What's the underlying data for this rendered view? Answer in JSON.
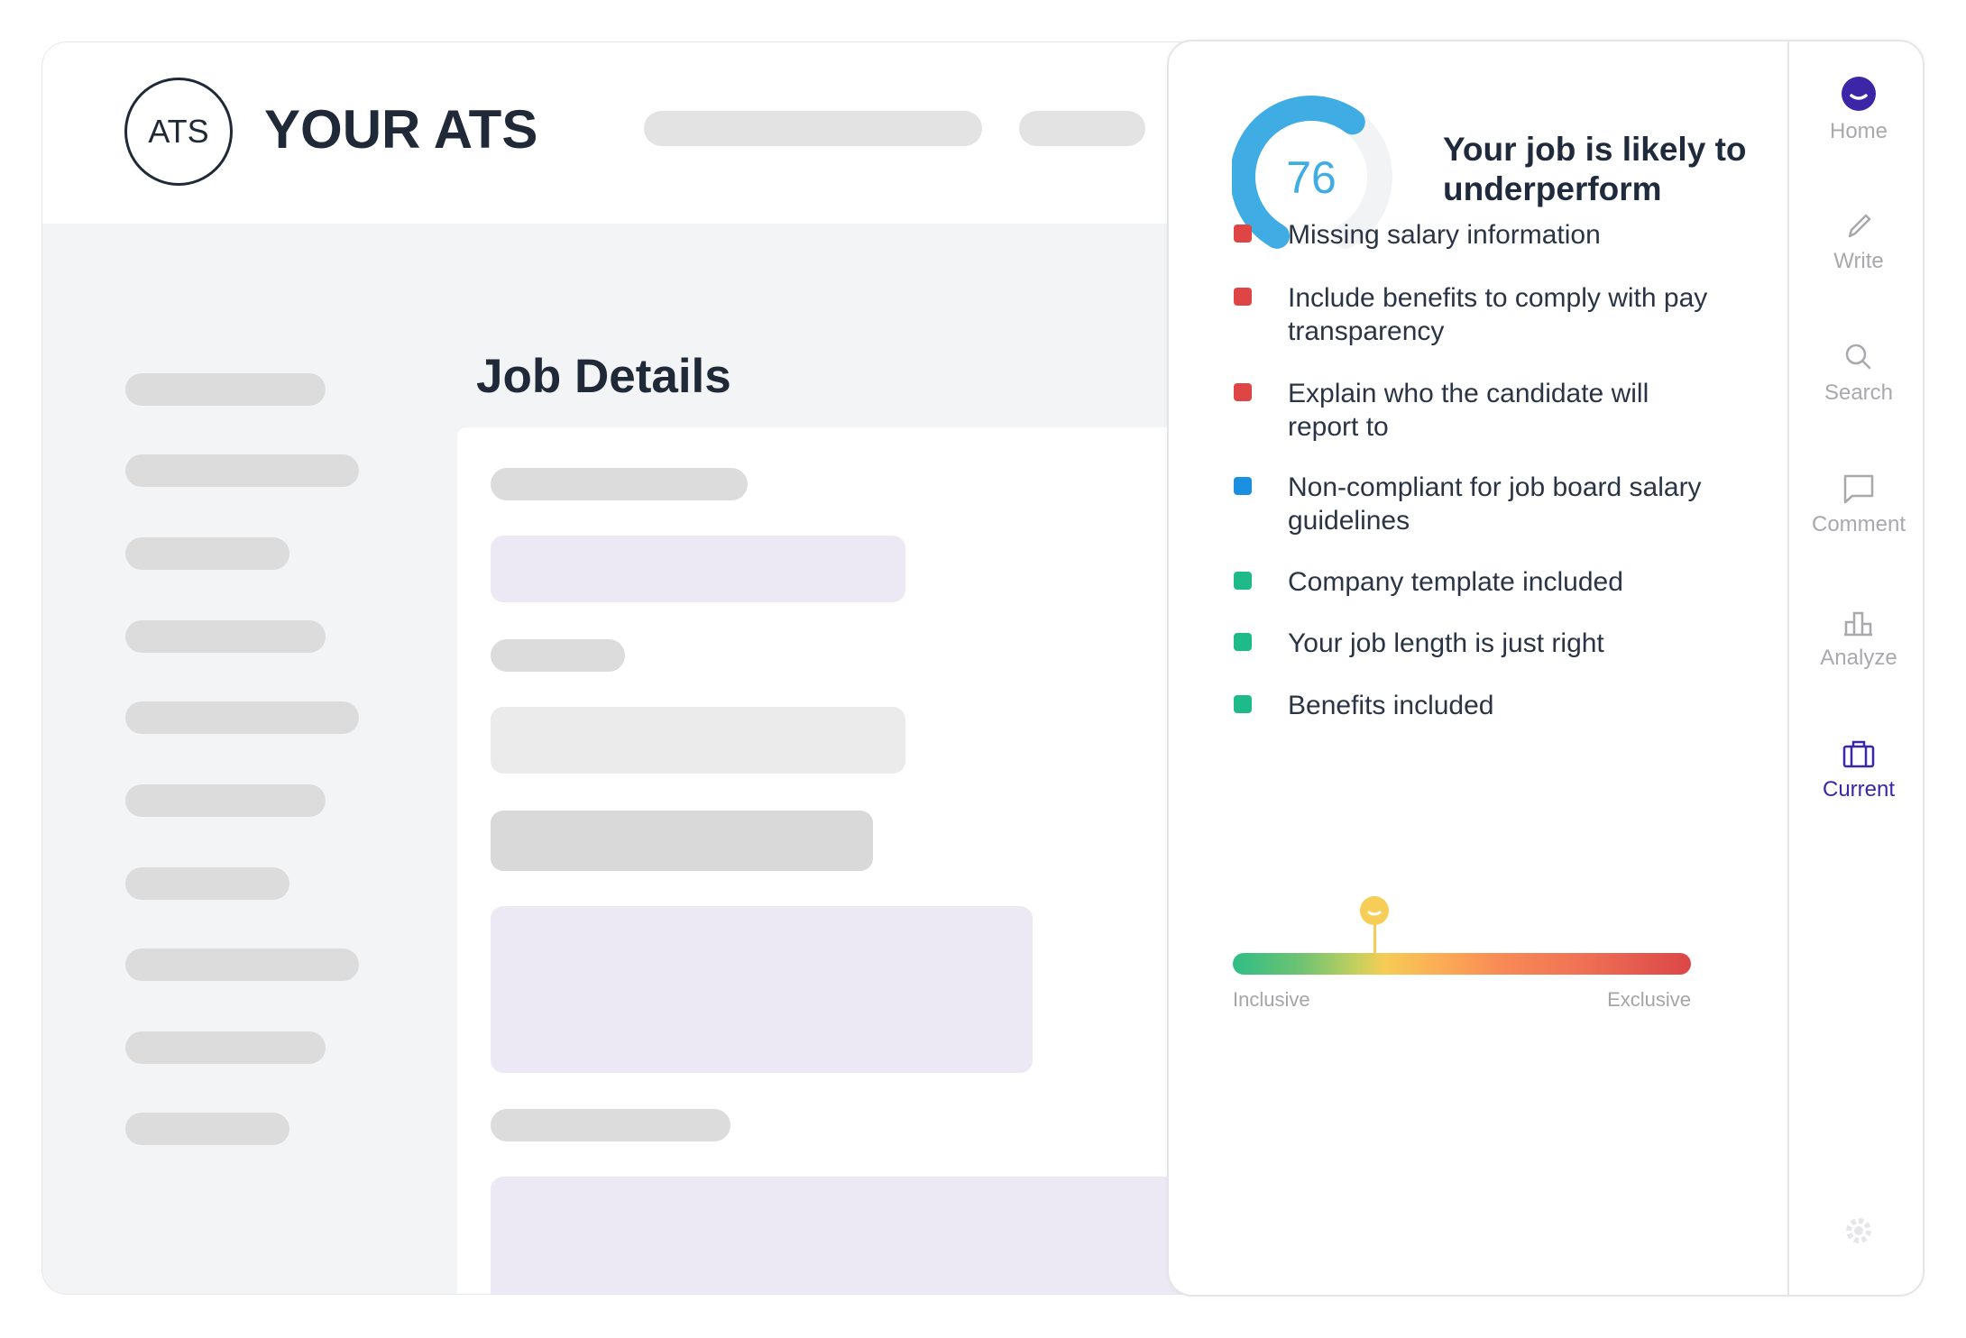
{
  "header": {
    "logo": "ATS",
    "brand": "YOUR ATS"
  },
  "main": {
    "title": "Job Details"
  },
  "panel": {
    "score": 76,
    "score_max": 100,
    "score_color": "#3fade3",
    "title": "Your job is likely to underperform",
    "items": [
      {
        "text": "Missing salary information",
        "status": "red"
      },
      {
        "text": "Include benefits to comply with pay transparency",
        "status": "red"
      },
      {
        "text": "Explain who the candidate will report to",
        "status": "red"
      },
      {
        "text": "Non-compliant for job board salary guidelines",
        "status": "blue"
      },
      {
        "text": "Company template included",
        "status": "green"
      },
      {
        "text": "Your job length is just right",
        "status": "green"
      },
      {
        "text": "Benefits included",
        "status": "green"
      }
    ],
    "status_colors": {
      "red": "#e04545",
      "blue": "#1b8fe0",
      "green": "#1fba8a"
    },
    "inclusivity": {
      "value_percent": 31,
      "left_label": "Inclusive",
      "right_label": "Exclusive"
    }
  },
  "sidebar": {
    "accent": "#3d25a8",
    "items": [
      {
        "label": "Home",
        "icon": "smiley-icon"
      },
      {
        "label": "Write",
        "icon": "pencil-icon"
      },
      {
        "label": "Search",
        "icon": "search-icon"
      },
      {
        "label": "Comment",
        "icon": "comment-icon"
      },
      {
        "label": "Analyze",
        "icon": "bar-chart-icon"
      },
      {
        "label": "Current",
        "icon": "briefcase-icon",
        "active": true
      }
    ],
    "settings_icon": "gear-icon"
  }
}
